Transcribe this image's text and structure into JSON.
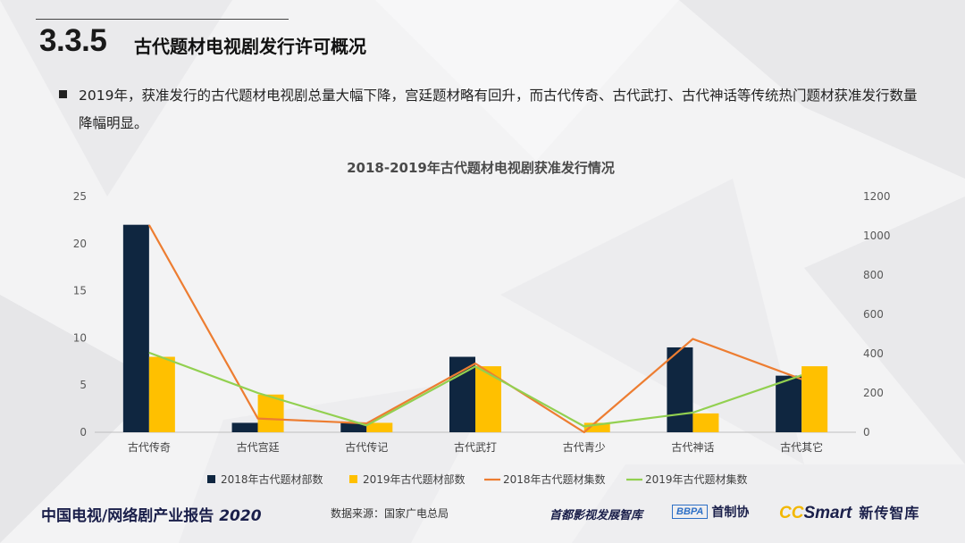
{
  "header": {
    "section_number": "3.3.5",
    "section_title": "古代题材电视剧发行许可概况"
  },
  "body": {
    "paragraph": "2019年，获准发行的古代题材电视剧总量大幅下降，宫廷题材略有回升，而古代传奇、古代武打、古代神话等传统热门题材获准发行数量降幅明显。"
  },
  "footer": {
    "report_title": "中国电视/网络剧产业报告",
    "report_year": "2020",
    "source": "数据来源：国家广电总局",
    "logo1": "首都影视发展智库",
    "logo2_box": "BBPA",
    "logo2_text": "首制协",
    "logo3_cc": "CC",
    "logo3_smart": "Smart",
    "logo3_text": "新传智库"
  },
  "colors": {
    "bar2018": "#0f2640",
    "bar2019": "#ffc000",
    "line2018": "#ed7d31",
    "line2019": "#92d050"
  },
  "chart_data": {
    "type": "bar",
    "title": "2018-2019年古代题材电视剧获准发行情况",
    "categories": [
      "古代传奇",
      "古代宫廷",
      "古代传记",
      "古代武打",
      "古代青少",
      "古代神话",
      "古代其它"
    ],
    "ylim_left": [
      0,
      25
    ],
    "yticks_left": [
      "0",
      "5",
      "10",
      "15",
      "20",
      "25"
    ],
    "ylim_right": [
      0,
      1200
    ],
    "yticks_right": [
      "0",
      "200",
      "400",
      "600",
      "800",
      "1000",
      "1200"
    ],
    "series": [
      {
        "name": "2018年古代题材部数",
        "type": "bar",
        "axis": "left",
        "values": [
          22,
          1,
          1,
          8,
          0,
          9,
          6
        ]
      },
      {
        "name": "2019年古代题材部数",
        "type": "bar",
        "axis": "left",
        "values": [
          8,
          4,
          1,
          7,
          1,
          2,
          7
        ]
      },
      {
        "name": "2018年古代题材集数",
        "type": "line",
        "axis": "right",
        "values": [
          1055,
          70,
          45,
          350,
          0,
          475,
          270
        ]
      },
      {
        "name": "2019年古代题材集数",
        "type": "line",
        "axis": "right",
        "values": [
          405,
          200,
          35,
          335,
          30,
          100,
          290
        ]
      }
    ],
    "legend": "bottom",
    "grid": false
  }
}
